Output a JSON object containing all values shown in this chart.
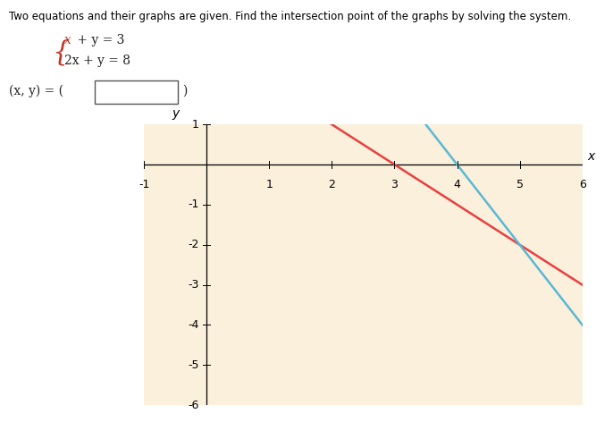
{
  "title_text": "Two equations and their graphs are given. Find the intersection point of the graphs by solving the system.",
  "eq1_line1": "x + y = 3",
  "eq2_line2": "2x + y = 8",
  "xlim": [
    -1,
    6
  ],
  "ylim": [
    -6,
    1
  ],
  "bg_color": "#FAF0DC",
  "line1_color": "#E84040",
  "line2_color": "#5BB8D4",
  "outer_bg": "#FFFFFF",
  "eq_color_red": "#C0392B",
  "eq_color_black": "#222222"
}
